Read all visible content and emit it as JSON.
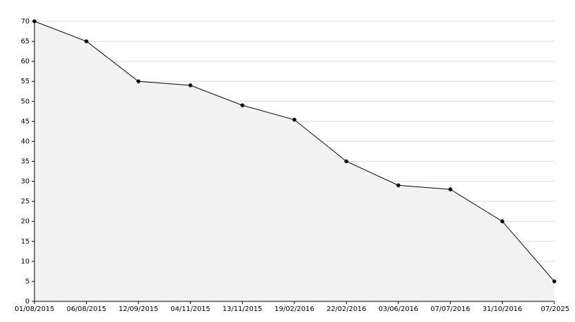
{
  "chart_data": {
    "type": "area",
    "categories": [
      "01/08/2015",
      "06/08/2015",
      "12/09/2015",
      "04/11/2015",
      "13/11/2015",
      "19/02/2016",
      "22/02/2016",
      "03/06/2016",
      "07/07/2016",
      "31/10/2016",
      "07/2025"
    ],
    "values": [
      70,
      65,
      55,
      54,
      49,
      45.4,
      35,
      29,
      28,
      20,
      5
    ],
    "color": "#000000",
    "fill_color": "#f2f2f2",
    "ylim": [
      0,
      70
    ],
    "yticks": [
      0,
      5,
      10,
      15,
      20,
      25,
      30,
      35,
      40,
      45,
      50,
      55,
      60,
      65,
      70
    ],
    "grid": true
  }
}
